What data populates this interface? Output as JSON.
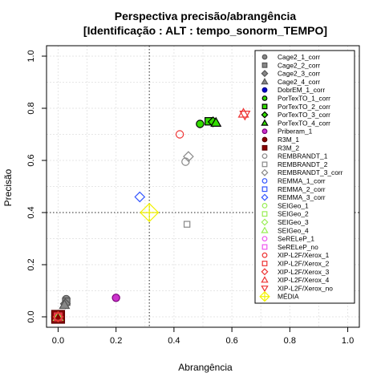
{
  "chart_data": {
    "type": "scatter",
    "title": "Perspectiva precisão/abrangência",
    "subtitle": "[Identificação : ALT : tempo_sonorm_TEMPO]",
    "xlabel": "Abrangência",
    "ylabel": "Precisão",
    "xlim": [
      0,
      1
    ],
    "ylim": [
      0,
      1
    ],
    "x_ticks": [
      "0.0",
      "0.2",
      "0.4",
      "0.6",
      "0.8",
      "1.0"
    ],
    "y_ticks": [
      "0.0",
      "0.2",
      "0.4",
      "0.6",
      "0.8",
      "1.0"
    ],
    "grid": true,
    "reference_lines": {
      "x": 0.315,
      "y": 0.4
    },
    "legend_position": "top-right",
    "series": [
      {
        "name": "Cage2_1_corr",
        "shape": "circle",
        "stroke": "#555555",
        "fill": "#888888",
        "x": 0.028,
        "y": 0.068
      },
      {
        "name": "Cage2_2_corr",
        "shape": "square",
        "stroke": "#555555",
        "fill": "#888888",
        "x": 0.028,
        "y": 0.058
      },
      {
        "name": "Cage2_3_corr",
        "shape": "diamond",
        "stroke": "#555555",
        "fill": "#888888",
        "x": 0.025,
        "y": 0.05
      },
      {
        "name": "Cage2_4_corr",
        "shape": "triangle",
        "stroke": "#555555",
        "fill": "#888888",
        "x": 0.022,
        "y": 0.046
      },
      {
        "name": "DobrEM_1_corr",
        "shape": "circle",
        "stroke": "#00008b",
        "fill": "#0000cd",
        "x": 0.0,
        "y": 0.0
      },
      {
        "name": "PorTexTO_1_corr",
        "shape": "circle",
        "stroke": "#000000",
        "fill": "#33dd00",
        "x": 0.49,
        "y": 0.74
      },
      {
        "name": "PorTexTO_2_corr",
        "shape": "square",
        "stroke": "#000000",
        "fill": "#33dd00",
        "x": 0.52,
        "y": 0.75
      },
      {
        "name": "PorTexTO_3_corr",
        "shape": "diamond",
        "stroke": "#000000",
        "fill": "#33dd00",
        "x": 0.535,
        "y": 0.748
      },
      {
        "name": "PorTexTO_4_corr",
        "shape": "triangle",
        "stroke": "#000000",
        "fill": "#33dd00",
        "x": 0.545,
        "y": 0.745
      },
      {
        "name": "Priberam_1",
        "shape": "circle",
        "stroke": "#7a007a",
        "fill": "#cc33cc",
        "x": 0.2,
        "y": 0.073
      },
      {
        "name": "R3M_1",
        "shape": "circle",
        "stroke": "#5a0000",
        "fill": "#8b0000",
        "x": 0.0,
        "y": 0.0
      },
      {
        "name": "R3M_2",
        "shape": "square",
        "stroke": "#5a0000",
        "fill": "#8b0000",
        "x": 0.0,
        "y": 0.0
      },
      {
        "name": "REMBRANDT_1",
        "shape": "circle",
        "stroke": "#888888",
        "fill": "none",
        "x": 0.44,
        "y": 0.595
      },
      {
        "name": "REMBRANDT_2",
        "shape": "square",
        "stroke": "#888888",
        "fill": "none",
        "x": 0.445,
        "y": 0.355
      },
      {
        "name": "REMBRANDT_3_corr",
        "shape": "diamond",
        "stroke": "#888888",
        "fill": "none",
        "x": 0.45,
        "y": 0.615
      },
      {
        "name": "REMMA_1_corr",
        "shape": "circle",
        "stroke": "#3355ff",
        "fill": "none",
        "x": 0.0,
        "y": 0.0
      },
      {
        "name": "REMMA_2_corr",
        "shape": "square",
        "stroke": "#3355ff",
        "fill": "none",
        "x": 0.0,
        "y": 0.0
      },
      {
        "name": "REMMA_3_corr",
        "shape": "diamond",
        "stroke": "#3355ff",
        "fill": "none",
        "x": 0.282,
        "y": 0.46
      },
      {
        "name": "SEIGeo_1",
        "shape": "circle",
        "stroke": "#99ee55",
        "fill": "none",
        "x": 0.0,
        "y": 0.0
      },
      {
        "name": "SEIGeo_2",
        "shape": "square",
        "stroke": "#99ee55",
        "fill": "none",
        "x": 0.0,
        "y": 0.0
      },
      {
        "name": "SEIGeo_3",
        "shape": "diamond",
        "stroke": "#99ee55",
        "fill": "none",
        "x": 0.0,
        "y": 0.0
      },
      {
        "name": "SEIGeo_4",
        "shape": "triangle",
        "stroke": "#99ee55",
        "fill": "none",
        "x": 0.0,
        "y": 0.0
      },
      {
        "name": "SeRELeP_1",
        "shape": "circle",
        "stroke": "#ee55ee",
        "fill": "none",
        "x": 0.0,
        "y": 0.0
      },
      {
        "name": "SeRELeP_no",
        "shape": "square",
        "stroke": "#ee55ee",
        "fill": "none",
        "x": 0.0,
        "y": 0.0
      },
      {
        "name": "XIP-L2F/Xerox_1",
        "shape": "circle",
        "stroke": "#ee3333",
        "fill": "none",
        "x": 0.42,
        "y": 0.7
      },
      {
        "name": "XIP-L2F/Xerox_2",
        "shape": "square",
        "stroke": "#ee3333",
        "fill": "none",
        "x": 0.0,
        "y": 0.0
      },
      {
        "name": "XIP-L2F/Xerox_3",
        "shape": "diamond",
        "stroke": "#ee3333",
        "fill": "none",
        "x": 0.0,
        "y": 0.0
      },
      {
        "name": "XIP-L2F/Xerox_4",
        "shape": "triangle",
        "stroke": "#ee3333",
        "fill": "none",
        "x": 0.64,
        "y": 0.78
      },
      {
        "name": "XIP-L2F/Xerox_no",
        "shape": "triangle-down",
        "stroke": "#ee3333",
        "fill": "none",
        "x": 0.645,
        "y": 0.775
      },
      {
        "name": "MÉDIA",
        "shape": "diamond-plus",
        "stroke": "#f2f200",
        "fill": "none",
        "x": 0.315,
        "y": 0.4
      }
    ]
  }
}
